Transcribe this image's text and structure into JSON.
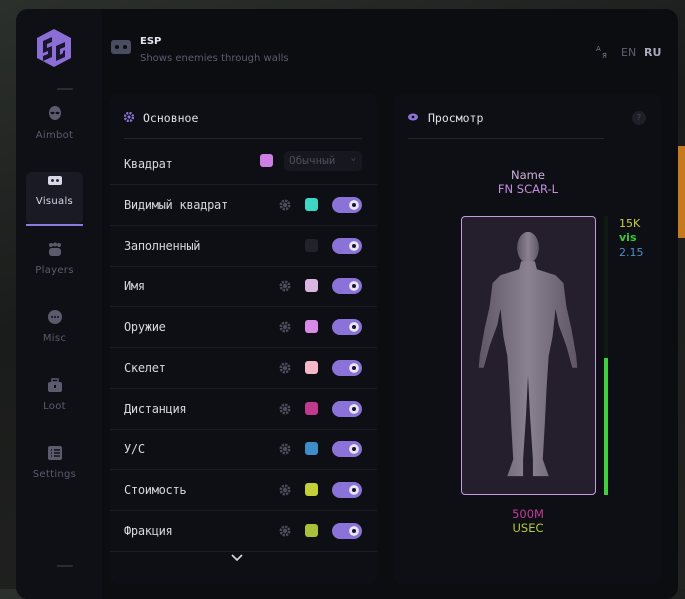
{
  "header": {
    "title": "ESP",
    "subtitle": "Shows enemies through walls",
    "icon": "vr-headset-icon"
  },
  "language": {
    "options": [
      "EN",
      "RU"
    ],
    "active": "RU",
    "icon": "translate-icon"
  },
  "sidebar": {
    "items": [
      {
        "label": "Aimbot",
        "icon": "alien-icon",
        "active": false
      },
      {
        "label": "Visuals",
        "icon": "vr-headset-icon",
        "active": true
      },
      {
        "label": "Players",
        "icon": "users-icon",
        "active": false
      },
      {
        "label": "Misc",
        "icon": "dots-icon",
        "active": false
      },
      {
        "label": "Loot",
        "icon": "toolbox-icon",
        "active": false
      },
      {
        "label": "Settings",
        "icon": "list-icon",
        "active": false
      }
    ]
  },
  "main": {
    "title": "Основное",
    "box": {
      "label": "Квадрат",
      "color": "#cf7ee6",
      "mode": "Обычный"
    },
    "rows": [
      {
        "label": "Видимый квадрат",
        "gear": true,
        "color": "#3ed6c4",
        "enabled": true
      },
      {
        "label": "Заполненный",
        "gear": false,
        "color": "#22222a",
        "enabled": true
      },
      {
        "label": "Имя",
        "gear": true,
        "color": "#d9b6e0",
        "enabled": true
      },
      {
        "label": "Оружие",
        "gear": true,
        "color": "#d88ae8",
        "enabled": true
      },
      {
        "label": "Скелет",
        "gear": true,
        "color": "#f5b8c8",
        "enabled": true
      },
      {
        "label": "Дистанция",
        "gear": true,
        "color": "#c03a8e",
        "enabled": true
      },
      {
        "label": "У/С",
        "gear": true,
        "color": "#3e8cc8",
        "enabled": true
      },
      {
        "label": "Стоимость",
        "gear": true,
        "color": "#c4d03a",
        "enabled": true
      },
      {
        "label": "Фракция",
        "gear": true,
        "color": "#a8c03a",
        "enabled": true
      }
    ]
  },
  "preview": {
    "title": "Просмотр",
    "help": "?",
    "name": "Name",
    "weapon": "FN SCAR-L",
    "value": "15K",
    "visibility": "vis",
    "kd": "2.15",
    "distance": "500M",
    "faction": "USEC",
    "health_fraction": 0.49,
    "colors": {
      "name": "#c9b4d8",
      "weapon": "#c38ee0",
      "value": "#c7d044",
      "vis": "#38c838",
      "kd": "#4d8ec8",
      "distance": "#c23c96",
      "faction": "#b8c840",
      "health": "#3fcf3f",
      "box": "#c69ae0"
    }
  }
}
